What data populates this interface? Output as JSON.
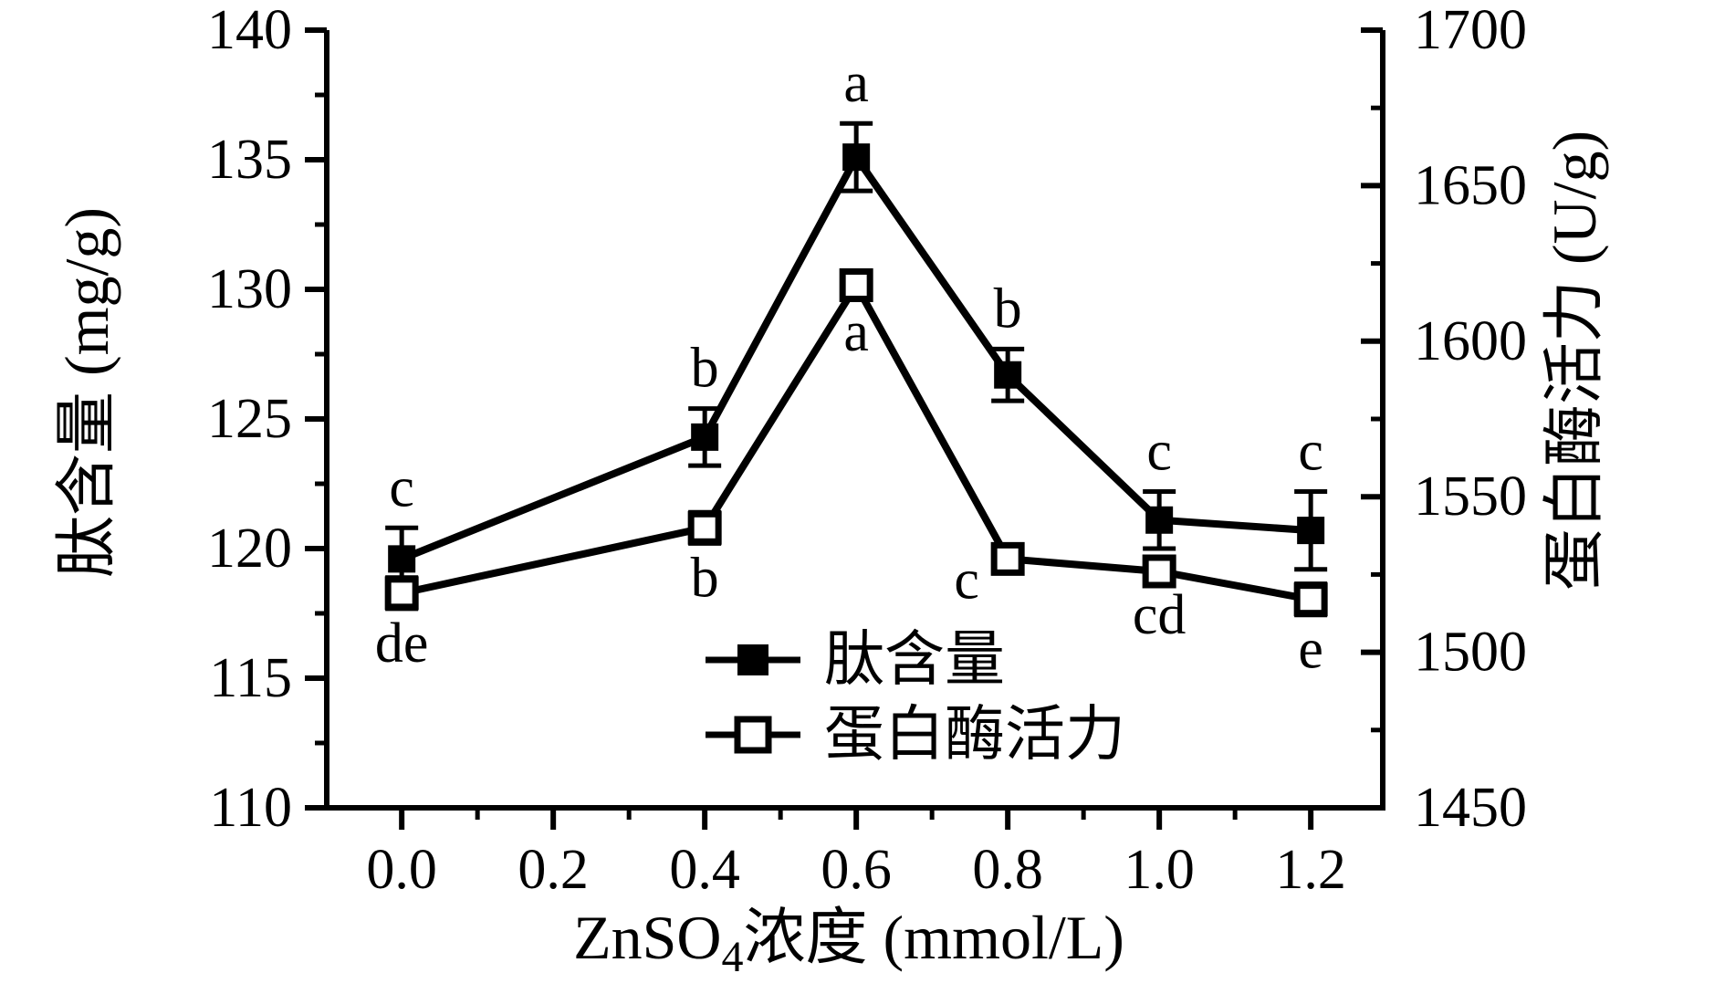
{
  "chart_data": {
    "type": "line",
    "title": "",
    "x": [
      0.0,
      0.4,
      0.6,
      0.8,
      1.0,
      1.2
    ],
    "xlabel": {
      "prefix": "ZnSO",
      "sub": "4",
      "suffix": "浓度 (mmol/L)"
    },
    "x_axis": {
      "min": -0.099,
      "max": 1.295,
      "major_values": [
        0.0,
        0.2,
        0.4,
        0.6,
        0.8,
        1.0,
        1.2
      ],
      "major_labels": [
        "0.0",
        "0.2",
        "0.4",
        "0.6",
        "0.8",
        "1.0",
        "1.2"
      ],
      "minor_values": [
        0.1,
        0.3,
        0.5,
        0.7,
        0.9,
        1.1
      ]
    },
    "left_axis": {
      "label": "肽含量 (mg/g)",
      "min": 110,
      "max": 140,
      "major_values": [
        110,
        115,
        120,
        125,
        130,
        135,
        140
      ],
      "major_labels": [
        "110",
        "115",
        "120",
        "125",
        "130",
        "135",
        "140"
      ],
      "minor_values": [
        112.5,
        117.5,
        122.5,
        127.5,
        132.5,
        137.5
      ]
    },
    "right_axis": {
      "label": "蛋白酶活力 (U/g)",
      "min": 1450,
      "max": 1700,
      "major_values": [
        1450,
        1500,
        1550,
        1600,
        1650,
        1700
      ],
      "major_labels": [
        "1450",
        "1500",
        "1550",
        "1600",
        "1650",
        "1700"
      ],
      "minor_values": [
        1475,
        1525,
        1575,
        1625,
        1675
      ]
    },
    "series": [
      {
        "name": "肽含量",
        "axis": "left",
        "marker": "filled-square",
        "values": [
          119.6,
          124.3,
          135.1,
          126.7,
          121.1,
          120.7
        ],
        "errors": [
          1.2,
          1.1,
          1.3,
          1.0,
          1.1,
          1.5
        ],
        "sig_labels": [
          "c",
          "b",
          "a",
          "b",
          "c",
          "c"
        ],
        "label_side": "above",
        "label_offsets": {}
      },
      {
        "name": "蛋白酶活力",
        "axis": "right",
        "marker": "open-square",
        "values": [
          1519,
          1540,
          1618,
          1530,
          1526,
          1517
        ],
        "errors": [
          5,
          5,
          4,
          3,
          3,
          5
        ],
        "sig_labels": [
          "de",
          "b",
          "a",
          "c",
          "cd",
          "e"
        ],
        "label_side": "below",
        "label_offsets": {
          "3": [
            -45,
            -25
          ]
        }
      }
    ],
    "legend": {
      "position": "lower-center-inside",
      "entries": [
        "肽含量",
        "蛋白酶活力"
      ]
    },
    "colors": {
      "foreground": "#000000",
      "background": "#ffffff"
    },
    "grid": false
  }
}
